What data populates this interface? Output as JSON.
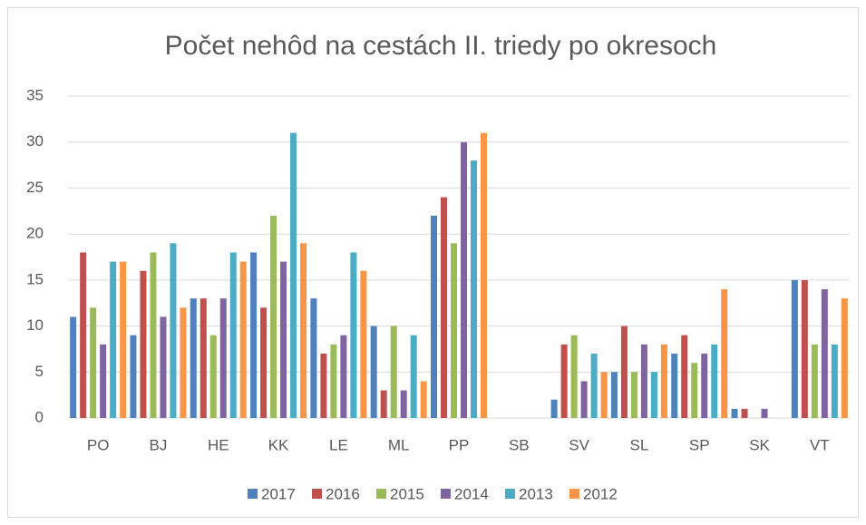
{
  "chart_data": {
    "type": "bar",
    "title": "Počet nehôd na cestách II. triedy  po okresoch",
    "categories": [
      "PO",
      "BJ",
      "HE",
      "KK",
      "LE",
      "ML",
      "PP",
      "SB",
      "SV",
      "SL",
      "SP",
      "SK",
      "VT"
    ],
    "series": [
      {
        "name": "2017",
        "color": "#4f81bd",
        "values": [
          11,
          9,
          13,
          18,
          13,
          10,
          22,
          0,
          2,
          5,
          7,
          1,
          15
        ]
      },
      {
        "name": "2016",
        "color": "#c0504d",
        "values": [
          18,
          16,
          13,
          12,
          7,
          3,
          24,
          0,
          8,
          10,
          9,
          1,
          15
        ]
      },
      {
        "name": "2015",
        "color": "#9bbb59",
        "values": [
          12,
          18,
          9,
          22,
          8,
          10,
          19,
          0,
          9,
          5,
          6,
          0,
          8
        ]
      },
      {
        "name": "2014",
        "color": "#8064a2",
        "values": [
          8,
          11,
          13,
          17,
          9,
          3,
          30,
          0,
          4,
          8,
          7,
          1,
          14
        ]
      },
      {
        "name": "2013",
        "color": "#4bacc6",
        "values": [
          17,
          19,
          18,
          31,
          18,
          9,
          28,
          0,
          7,
          5,
          8,
          0,
          8
        ]
      },
      {
        "name": "2012",
        "color": "#f79646",
        "values": [
          17,
          12,
          17,
          19,
          16,
          4,
          31,
          0,
          5,
          8,
          14,
          0,
          13
        ]
      }
    ],
    "ylim": [
      0,
      35
    ],
    "yticks": [
      0,
      5,
      10,
      15,
      20,
      25,
      30,
      35
    ],
    "grid": true,
    "legend": "bottom"
  }
}
